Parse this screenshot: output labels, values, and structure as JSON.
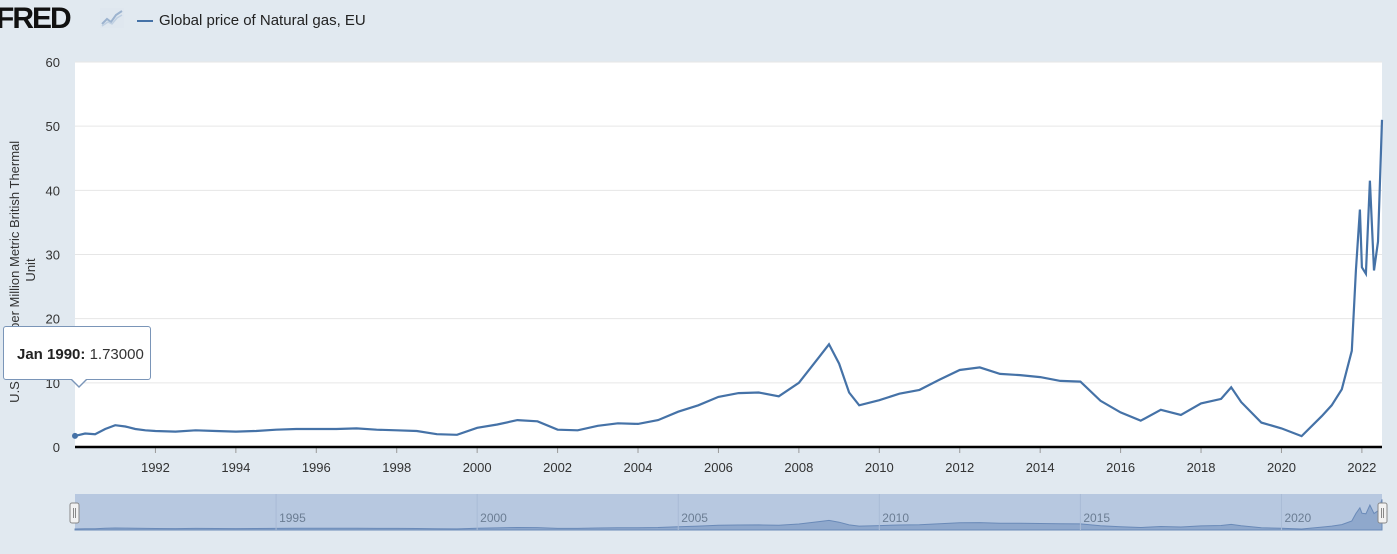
{
  "header": {
    "logo_text": "FRED",
    "logo_mark": "fred-chart-logo-icon",
    "legend_label": "Global price of Natural gas, EU"
  },
  "colors": {
    "series": "#4572a7",
    "background": "#e1e9f0",
    "plot_bg": "#ffffff",
    "navigator_fill": "#b7c8e0"
  },
  "tooltip": {
    "date": "Jan 1990",
    "value": "1.73000"
  },
  "chart_data": {
    "type": "line",
    "title": "",
    "legend": [
      "Global price of Natural gas, EU"
    ],
    "legend_placement": "top-left",
    "xlabel": "",
    "ylabel": "U.S. Dollars per Million Metric British Thermal Unit",
    "ylabel_lines": [
      "U.S. Dollars per Million Metric British Thermal",
      "Unit"
    ],
    "ylim": [
      0,
      60
    ],
    "yticks": [
      0,
      10,
      20,
      30,
      40,
      50,
      60
    ],
    "xlim": [
      1990.0,
      2022.5
    ],
    "xticks": [
      1992,
      1994,
      1996,
      1998,
      2000,
      2002,
      2004,
      2006,
      2008,
      2010,
      2012,
      2014,
      2016,
      2018,
      2020,
      2022
    ],
    "grid": true,
    "series": [
      {
        "name": "Global price of Natural gas, EU",
        "x": [
          1990.0,
          1990.25,
          1990.5,
          1990.75,
          1991.0,
          1991.25,
          1991.5,
          1991.75,
          1992.0,
          1992.5,
          1993.0,
          1993.5,
          1994.0,
          1994.5,
          1995.0,
          1995.5,
          1996.0,
          1996.5,
          1997.0,
          1997.5,
          1998.0,
          1998.5,
          1999.0,
          1999.5,
          2000.0,
          2000.5,
          2001.0,
          2001.5,
          2002.0,
          2002.5,
          2003.0,
          2003.5,
          2004.0,
          2004.5,
          2005.0,
          2005.5,
          2006.0,
          2006.5,
          2007.0,
          2007.5,
          2008.0,
          2008.5,
          2008.75,
          2009.0,
          2009.25,
          2009.5,
          2010.0,
          2010.5,
          2011.0,
          2011.5,
          2012.0,
          2012.5,
          2013.0,
          2013.5,
          2014.0,
          2014.5,
          2015.0,
          2015.5,
          2016.0,
          2016.5,
          2017.0,
          2017.5,
          2018.0,
          2018.5,
          2018.75,
          2019.0,
          2019.5,
          2020.0,
          2020.5,
          2021.0,
          2021.25,
          2021.5,
          2021.75,
          2021.85,
          2021.95,
          2022.0,
          2022.1,
          2022.2,
          2022.3,
          2022.4,
          2022.5
        ],
        "y": [
          1.73,
          2.1,
          2.0,
          2.8,
          3.4,
          3.2,
          2.8,
          2.6,
          2.5,
          2.4,
          2.6,
          2.5,
          2.4,
          2.5,
          2.7,
          2.8,
          2.8,
          2.8,
          2.9,
          2.7,
          2.6,
          2.5,
          2.0,
          1.9,
          3.0,
          3.5,
          4.2,
          4.0,
          2.7,
          2.6,
          3.3,
          3.7,
          3.6,
          4.2,
          5.5,
          6.5,
          7.8,
          8.4,
          8.5,
          7.9,
          10.0,
          14.0,
          16.0,
          13.0,
          8.5,
          6.5,
          7.3,
          8.3,
          8.9,
          10.5,
          12.0,
          12.4,
          11.4,
          11.2,
          10.9,
          10.3,
          10.2,
          7.2,
          5.4,
          4.1,
          5.8,
          5.0,
          6.8,
          7.5,
          9.3,
          7.0,
          3.8,
          2.9,
          1.7,
          4.8,
          6.5,
          9.0,
          15.0,
          27.5,
          37.0,
          28.0,
          27.0,
          41.5,
          27.5,
          32.0,
          51.0
        ]
      }
    ],
    "navigator": {
      "xticks": [
        1995,
        2000,
        2005,
        2010,
        2015,
        2020
      ]
    }
  }
}
